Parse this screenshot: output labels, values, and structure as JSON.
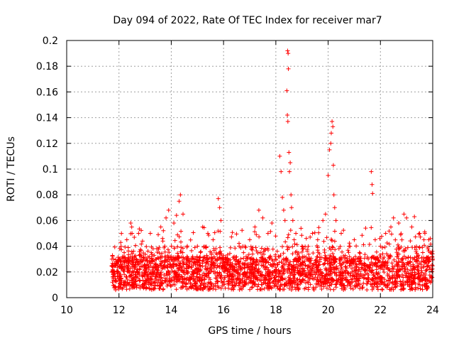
{
  "chart_data": {
    "type": "scatter",
    "title": "Day 094 of 2022, Rate Of TEC Index for receiver mar7",
    "xlabel": "GPS time / hours",
    "ylabel": "ROTI / TECUs",
    "xlim": [
      10,
      24
    ],
    "ylim": [
      0,
      0.2
    ],
    "xticks": [
      "10",
      "12",
      "14",
      "16",
      "18",
      "20",
      "22",
      "24"
    ],
    "xtick_values": [
      10,
      12,
      14,
      16,
      18,
      20,
      22,
      24
    ],
    "yticks": [
      "0",
      "0.02",
      "0.04",
      "0.06",
      "0.08",
      "0.1",
      "0.12",
      "0.14",
      "0.16",
      "0.18",
      "0.2"
    ],
    "ytick_values": [
      0,
      0.02,
      0.04,
      0.06,
      0.08,
      0.1,
      0.12,
      0.14,
      0.16,
      0.18,
      0.2
    ],
    "grid": true,
    "marker": "+",
    "color": "#ff0000",
    "series": [
      {
        "name": "ROTI",
        "note": "dense cloud from ~11.7 h to 24 h; representative points",
        "points": [
          [
            11.75,
            0.012
          ],
          [
            11.8,
            0.02
          ],
          [
            11.9,
            0.028
          ],
          [
            12.0,
            0.016
          ],
          [
            12.1,
            0.024
          ],
          [
            12.2,
            0.035
          ],
          [
            12.3,
            0.045
          ],
          [
            12.4,
            0.02
          ],
          [
            12.45,
            0.058
          ],
          [
            12.5,
            0.05
          ],
          [
            12.6,
            0.03
          ],
          [
            12.75,
            0.05
          ],
          [
            12.9,
            0.044
          ],
          [
            13.0,
            0.025
          ],
          [
            13.2,
            0.05
          ],
          [
            13.4,
            0.03
          ],
          [
            13.5,
            0.049
          ],
          [
            13.6,
            0.055
          ],
          [
            13.75,
            0.04
          ],
          [
            13.8,
            0.062
          ],
          [
            13.9,
            0.068
          ],
          [
            14.0,
            0.03
          ],
          [
            14.1,
            0.058
          ],
          [
            14.2,
            0.064
          ],
          [
            14.3,
            0.075
          ],
          [
            14.35,
            0.08
          ],
          [
            14.45,
            0.065
          ],
          [
            14.6,
            0.02
          ],
          [
            14.8,
            0.03
          ],
          [
            15.0,
            0.04
          ],
          [
            15.2,
            0.055
          ],
          [
            15.4,
            0.05
          ],
          [
            15.6,
            0.045
          ],
          [
            15.8,
            0.077
          ],
          [
            15.85,
            0.07
          ],
          [
            15.9,
            0.06
          ],
          [
            16.0,
            0.03
          ],
          [
            16.3,
            0.025
          ],
          [
            16.6,
            0.04
          ],
          [
            17.0,
            0.045
          ],
          [
            17.2,
            0.055
          ],
          [
            17.35,
            0.068
          ],
          [
            17.5,
            0.062
          ],
          [
            17.7,
            0.05
          ],
          [
            17.85,
            0.058
          ],
          [
            18.0,
            0.03
          ],
          [
            18.15,
            0.11
          ],
          [
            18.2,
            0.098
          ],
          [
            18.25,
            0.078
          ],
          [
            18.3,
            0.068
          ],
          [
            18.35,
            0.06
          ],
          [
            18.45,
            0.192
          ],
          [
            18.47,
            0.19
          ],
          [
            18.48,
            0.178
          ],
          [
            18.42,
            0.161
          ],
          [
            18.44,
            0.142
          ],
          [
            18.46,
            0.137
          ],
          [
            18.5,
            0.113
          ],
          [
            18.55,
            0.105
          ],
          [
            18.52,
            0.098
          ],
          [
            18.58,
            0.08
          ],
          [
            18.6,
            0.07
          ],
          [
            18.65,
            0.06
          ],
          [
            18.7,
            0.045
          ],
          [
            18.8,
            0.01
          ],
          [
            19.0,
            0.04
          ],
          [
            19.2,
            0.03
          ],
          [
            19.4,
            0.05
          ],
          [
            19.6,
            0.045
          ],
          [
            19.8,
            0.06
          ],
          [
            19.9,
            0.065
          ],
          [
            20.0,
            0.095
          ],
          [
            20.05,
            0.115
          ],
          [
            20.1,
            0.12
          ],
          [
            20.12,
            0.128
          ],
          [
            20.15,
            0.137
          ],
          [
            20.18,
            0.133
          ],
          [
            20.2,
            0.103
          ],
          [
            20.22,
            0.08
          ],
          [
            20.25,
            0.07
          ],
          [
            20.3,
            0.06
          ],
          [
            20.5,
            0.05
          ],
          [
            20.8,
            0.04
          ],
          [
            21.0,
            0.045
          ],
          [
            21.2,
            0.035
          ],
          [
            21.4,
            0.025
          ],
          [
            21.65,
            0.098
          ],
          [
            21.68,
            0.088
          ],
          [
            21.7,
            0.081
          ],
          [
            21.8,
            0.045
          ],
          [
            22.0,
            0.04
          ],
          [
            22.2,
            0.05
          ],
          [
            22.4,
            0.055
          ],
          [
            22.5,
            0.062
          ],
          [
            22.7,
            0.058
          ],
          [
            22.9,
            0.065
          ],
          [
            23.0,
            0.062
          ],
          [
            23.2,
            0.055
          ],
          [
            23.3,
            0.063
          ],
          [
            23.5,
            0.05
          ],
          [
            23.7,
            0.05
          ],
          [
            23.85,
            0.045
          ],
          [
            23.9,
            0.035
          ],
          [
            24.0,
            0.03
          ]
        ]
      }
    ]
  }
}
